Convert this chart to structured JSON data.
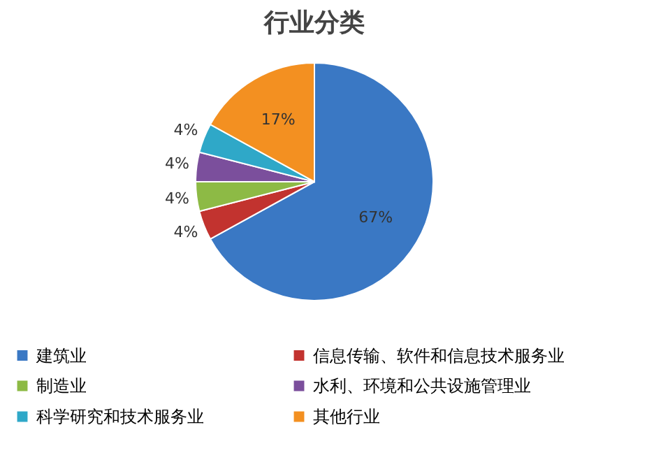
{
  "chart_data": {
    "type": "pie",
    "title": "行业分类",
    "categories": [
      "建筑业",
      "信息传输、软件和信息技术服务业",
      "制造业",
      "水利、环境和公共设施管理业",
      "科学研究和技术服务业",
      "其他行业"
    ],
    "values": [
      67,
      4,
      4,
      4,
      4,
      17
    ],
    "colors": [
      "#3a78c4",
      "#c2332f",
      "#8dba45",
      "#7b4f9c",
      "#2fa8c8",
      "#f39021"
    ],
    "value_labels": [
      "67%",
      "4%",
      "4%",
      "4%",
      "4%",
      "17%"
    ],
    "legend": "bottom"
  }
}
